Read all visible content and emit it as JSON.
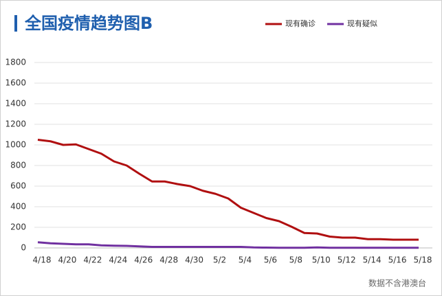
{
  "chart_data": {
    "type": "line",
    "title": "全国疫情趋势图B",
    "categories": [
      "4/18",
      null,
      "4/20",
      null,
      "4/22",
      null,
      "4/24",
      null,
      "4/26",
      null,
      "4/28",
      null,
      "4/30",
      null,
      "5/2",
      null,
      "5/4",
      null,
      "5/6",
      null,
      "5/8",
      null,
      "5/10",
      null,
      "5/12",
      null,
      "5/14",
      null,
      "5/16",
      null,
      "5/18"
    ],
    "series": [
      {
        "name": "现有确诊",
        "color": "#b00f10",
        "values": [
          1050,
          1035,
          1000,
          1005,
          960,
          915,
          840,
          800,
          720,
          645,
          645,
          620,
          600,
          555,
          525,
          480,
          390,
          340,
          290,
          260,
          205,
          145,
          140,
          110,
          100,
          100,
          85,
          85,
          80,
          80,
          80
        ]
      },
      {
        "name": "现有疑似",
        "color": "#7030a0",
        "values": [
          55,
          45,
          40,
          35,
          35,
          25,
          22,
          20,
          15,
          10,
          10,
          10,
          10,
          10,
          10,
          10,
          10,
          5,
          3,
          2,
          2,
          2,
          5,
          2,
          2,
          2,
          2,
          2,
          2,
          2,
          2
        ]
      }
    ],
    "ylim": [
      0,
      1800
    ],
    "yticks": [
      0,
      200,
      400,
      600,
      800,
      1000,
      1200,
      1400,
      1600,
      1800
    ],
    "grid": true,
    "legend": "top-right",
    "note": "数据不含港澳台"
  }
}
